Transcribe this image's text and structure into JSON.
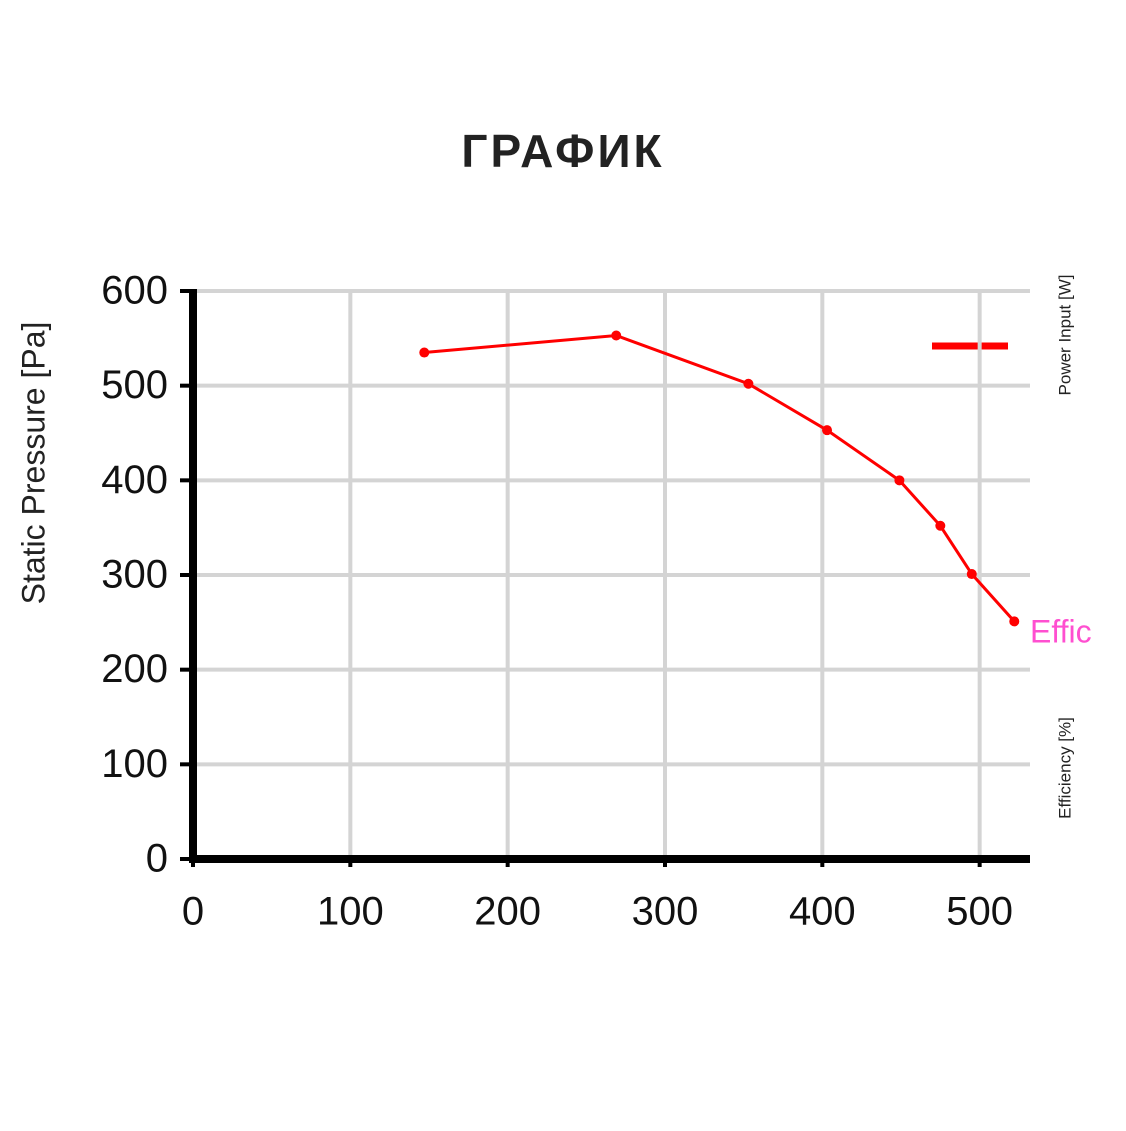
{
  "chart_data": {
    "type": "line",
    "title": "ГРАФИК",
    "y_label": "Static Pressure [Pa]",
    "right_labels": [
      "Power Input [W]",
      "Efficiency [%]"
    ],
    "annotation": "Effic",
    "x": [
      147,
      269,
      353,
      403,
      449,
      475,
      495,
      522
    ],
    "series": [
      {
        "color": "#ff0000",
        "values": [
          535,
          553,
          502,
          453,
          400,
          352,
          301,
          251
        ]
      }
    ],
    "xlim": [
      0,
      532
    ],
    "xticks": [
      0,
      100,
      200,
      300,
      400,
      500
    ],
    "ylim": [
      0,
      600
    ],
    "yticks": [
      0,
      100,
      200,
      300,
      400,
      500,
      600
    ],
    "grid": true
  }
}
